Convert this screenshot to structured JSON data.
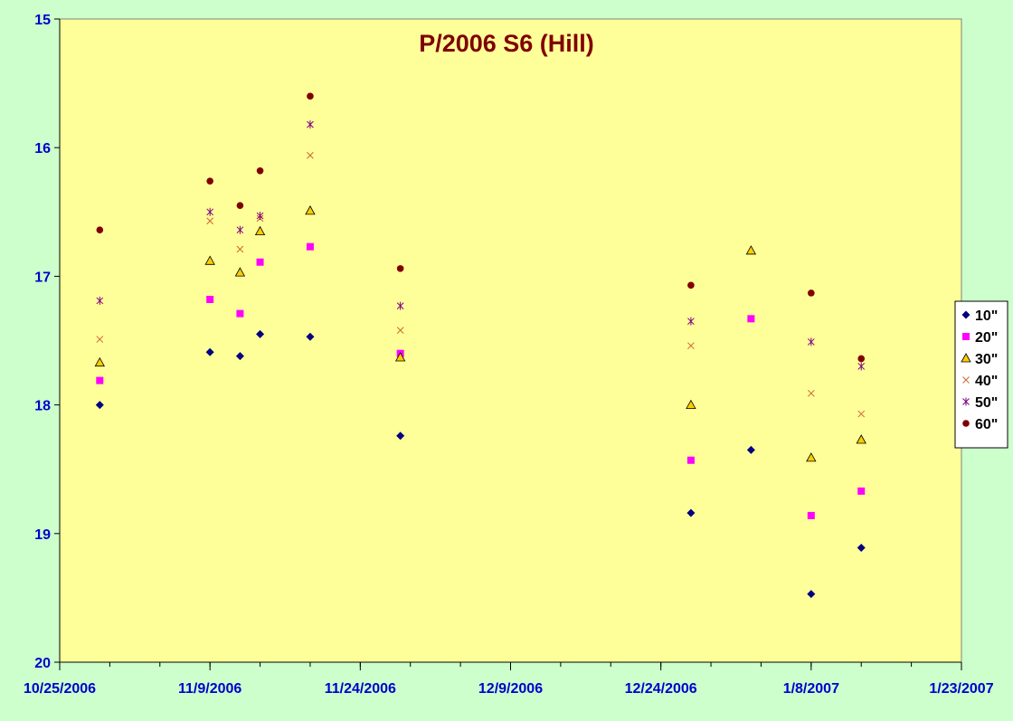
{
  "chart_data": {
    "type": "scatter",
    "title": "P/2006 S6 (Hill)",
    "xlabel": "",
    "ylabel": "",
    "x_tick_labels": [
      "10/25/2006",
      "11/9/2006",
      "11/24/2006",
      "12/9/2006",
      "12/24/2006",
      "1/8/2007",
      "1/23/2007"
    ],
    "xlim": [
      "2006-10-25",
      "2007-01-23"
    ],
    "x_major_step_days": 15,
    "x_minor_step_days": 5,
    "y_tick_labels": [
      "15",
      "16",
      "17",
      "18",
      "19",
      "20"
    ],
    "ylim": [
      15,
      20
    ],
    "y_reversed": true,
    "grid": false,
    "legend_position": "right",
    "plot_background": "#ffff99",
    "page_background": "#ccffcc",
    "title_color": "#800000",
    "tick_label_color": "#0000cc",
    "series": [
      {
        "name": "10\"",
        "marker": "diamond",
        "color": "#000080",
        "points": [
          [
            "2006-10-29",
            18.0
          ],
          [
            "2006-11-09",
            17.59
          ],
          [
            "2006-11-12",
            17.62
          ],
          [
            "2006-11-14",
            17.45
          ],
          [
            "2006-11-19",
            17.47
          ],
          [
            "2006-11-28",
            18.24
          ],
          [
            "2006-12-27",
            18.84
          ],
          [
            "2007-01-02",
            18.35
          ],
          [
            "2007-01-08",
            19.47
          ],
          [
            "2007-01-13",
            19.11
          ]
        ]
      },
      {
        "name": "20\"",
        "marker": "square",
        "color": "#ff00ff",
        "points": [
          [
            "2006-10-29",
            17.81
          ],
          [
            "2006-11-09",
            17.18
          ],
          [
            "2006-11-12",
            17.29
          ],
          [
            "2006-11-14",
            16.89
          ],
          [
            "2006-11-19",
            16.77
          ],
          [
            "2006-11-28",
            17.6
          ],
          [
            "2006-12-27",
            18.43
          ],
          [
            "2007-01-02",
            17.33
          ],
          [
            "2007-01-08",
            18.86
          ],
          [
            "2007-01-13",
            18.67
          ]
        ]
      },
      {
        "name": "30\"",
        "marker": "triangle",
        "color": "#ffcc00",
        "points": [
          [
            "2006-10-29",
            17.67
          ],
          [
            "2006-11-09",
            16.88
          ],
          [
            "2006-11-12",
            16.97
          ],
          [
            "2006-11-14",
            16.65
          ],
          [
            "2006-11-19",
            16.49
          ],
          [
            "2006-11-28",
            17.63
          ],
          [
            "2006-12-27",
            18.0
          ],
          [
            "2007-01-02",
            16.8
          ],
          [
            "2007-01-08",
            18.41
          ],
          [
            "2007-01-13",
            18.27
          ]
        ]
      },
      {
        "name": "40\"",
        "marker": "x",
        "color": "#cc6633",
        "points": [
          [
            "2006-10-29",
            17.49
          ],
          [
            "2006-11-09",
            16.57
          ],
          [
            "2006-11-12",
            16.79
          ],
          [
            "2006-11-14",
            16.55
          ],
          [
            "2006-11-19",
            16.06
          ],
          [
            "2006-11-28",
            17.42
          ],
          [
            "2006-12-27",
            17.54
          ],
          [
            "2007-01-08",
            17.91
          ],
          [
            "2007-01-13",
            18.07
          ]
        ]
      },
      {
        "name": "50\"",
        "marker": "star",
        "color": "#800080",
        "points": [
          [
            "2006-10-29",
            17.19
          ],
          [
            "2006-11-09",
            16.5
          ],
          [
            "2006-11-12",
            16.64
          ],
          [
            "2006-11-14",
            16.53
          ],
          [
            "2006-11-19",
            15.82
          ],
          [
            "2006-11-28",
            17.23
          ],
          [
            "2006-12-27",
            17.35
          ],
          [
            "2007-01-08",
            17.51
          ],
          [
            "2007-01-13",
            17.7
          ]
        ]
      },
      {
        "name": "60\"",
        "marker": "circle",
        "color": "#800000",
        "points": [
          [
            "2006-10-29",
            16.64
          ],
          [
            "2006-11-09",
            16.26
          ],
          [
            "2006-11-12",
            16.45
          ],
          [
            "2006-11-14",
            16.18
          ],
          [
            "2006-11-19",
            15.6
          ],
          [
            "2006-11-28",
            16.94
          ],
          [
            "2006-12-27",
            17.07
          ],
          [
            "2007-01-08",
            17.13
          ],
          [
            "2007-01-13",
            17.64
          ]
        ]
      }
    ]
  }
}
